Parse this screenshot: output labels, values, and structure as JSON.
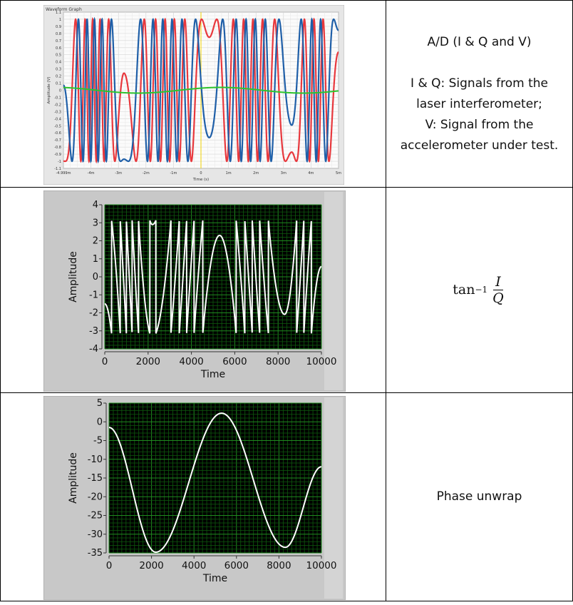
{
  "rows": [
    {
      "description_lines": [
        "A/D (I & Q and V)",
        "",
        "I & Q: Signals from the",
        "laser interferometer;",
        "V: Signal from the",
        "accelerometer under test."
      ]
    },
    {
      "formula": {
        "func": "tan",
        "exp": "−1",
        "num": "I",
        "den": "Q"
      }
    },
    {
      "description_lines": [
        "Phase unwrap"
      ]
    }
  ],
  "chart_data": [
    {
      "type": "line",
      "title": "Waveform Graph",
      "xlabel": "Time (s)",
      "ylabel": "Amplitude (V)",
      "xlim": [
        -5,
        5
      ],
      "ylim": [
        -1.1,
        1.1
      ],
      "x_tick_labels": [
        "-4.999m",
        "-4m",
        "-3m",
        "-2m",
        "-1m",
        "0",
        "1m",
        "2m",
        "3m",
        "4m",
        "5m"
      ],
      "y_tick_labels": [
        "1.1",
        "1",
        "0.9",
        "0.8",
        "0.7",
        "0.6",
        "0.5",
        "0.4",
        "0.3",
        "0.2",
        "0.1",
        "0",
        "-0.1",
        "-0.2",
        "-0.3",
        "-0.4",
        "-0.5",
        "-0.6",
        "-0.7",
        "-0.8",
        "-0.9",
        "-1",
        "-1.1"
      ],
      "series": [
        {
          "color": "#e8383d",
          "model": "sin(phase)",
          "amplitude": 1
        },
        {
          "color": "#1f5fa8",
          "model": "cos(phase)",
          "amplitude": 1
        },
        {
          "color": "#2ec42e",
          "model": "vibration",
          "amplitude": 0.04
        }
      ],
      "grid": true
    },
    {
      "type": "line",
      "xlabel": "Time",
      "ylabel": "Amplitude",
      "xlim": [
        0,
        10000
      ],
      "ylim": [
        -4,
        4
      ],
      "x_ticks": [
        0,
        2000,
        4000,
        6000,
        8000,
        10000
      ],
      "y_ticks": [
        4,
        3,
        2,
        1,
        0,
        -1,
        -2,
        -3,
        -4
      ],
      "series": [
        {
          "color": "#ffffff",
          "model": "wrapped phase"
        }
      ],
      "grid": true
    },
    {
      "type": "line",
      "xlabel": "Time",
      "ylabel": "Amplitude",
      "xlim": [
        0,
        10000
      ],
      "ylim": [
        -35,
        5
      ],
      "x_ticks": [
        0,
        2000,
        4000,
        6000,
        8000,
        10000
      ],
      "y_ticks": [
        5,
        0,
        -5,
        -10,
        -15,
        -20,
        -25,
        -30,
        -35
      ],
      "series": [
        {
          "color": "#ffffff",
          "model": "unwrapped phase"
        }
      ],
      "phase_points": [
        [
          0,
          -1.5
        ],
        [
          2200,
          -34.8
        ],
        [
          5300,
          2.3
        ],
        [
          8300,
          -33.5
        ],
        [
          10000,
          -12
        ]
      ],
      "grid": true
    }
  ]
}
